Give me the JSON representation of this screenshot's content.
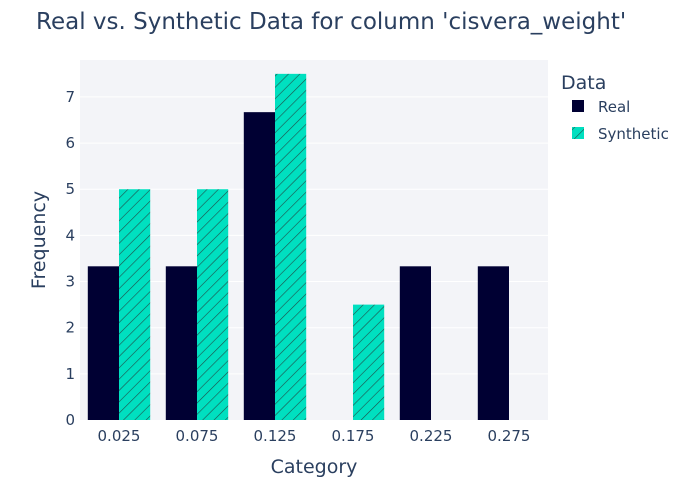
{
  "chart_data": {
    "type": "bar",
    "title": "Real vs. Synthetic Data for column 'cisvera_weight'",
    "xlabel": "Category",
    "ylabel": "Frequency",
    "categories": [
      "0.025",
      "0.075",
      "0.125",
      "0.175",
      "0.225",
      "0.275"
    ],
    "series": [
      {
        "name": "Real",
        "values": [
          3.33,
          3.33,
          6.67,
          0,
          3.33,
          3.33
        ],
        "color": "#000033",
        "pattern": "solid"
      },
      {
        "name": "Synthetic",
        "values": [
          5,
          5,
          7.5,
          2.5,
          0,
          0
        ],
        "color": "#00e0c0",
        "pattern": "hatch"
      }
    ],
    "ylim": [
      0,
      7.8
    ],
    "yticks": [
      0,
      1,
      2,
      3,
      4,
      5,
      6,
      7
    ],
    "grid": true,
    "legend": {
      "title": "Data",
      "position": "top-right"
    },
    "plot_background": "#f3f4f8"
  }
}
